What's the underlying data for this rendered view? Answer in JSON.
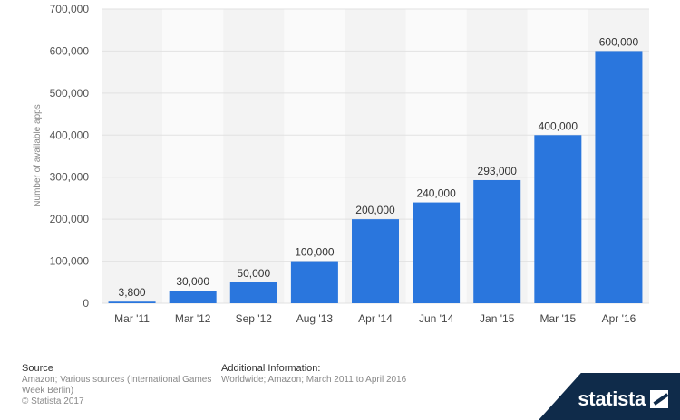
{
  "chart_data": {
    "type": "bar",
    "categories": [
      "Mar '11",
      "Mar '12",
      "Sep '12",
      "Aug '13",
      "Apr '14",
      "Jun '14",
      "Jan '15",
      "Mar '15",
      "Apr '16"
    ],
    "values": [
      3800,
      30000,
      50000,
      100000,
      200000,
      240000,
      293000,
      400000,
      600000
    ],
    "value_labels": [
      "3,800",
      "30,000",
      "50,000",
      "100,000",
      "200,000",
      "240,000",
      "293,000",
      "400,000",
      "600,000"
    ],
    "ylabel": "Number of available apps",
    "ylim": [
      0,
      700000
    ],
    "yticks": [
      0,
      100000,
      200000,
      300000,
      400000,
      500000,
      600000,
      700000
    ],
    "ytick_labels": [
      "0",
      "100,000",
      "200,000",
      "300,000",
      "400,000",
      "500,000",
      "600,000",
      "700,000"
    ],
    "bar_color": "#2a76dd",
    "grid": true
  },
  "footer": {
    "source_heading": "Source",
    "source_text": "Amazon; Various sources (International Games Week Berlin)",
    "copyright": "© Statista 2017",
    "additional_heading": "Additional Information:",
    "additional_text": "Worldwide; Amazon; March 2011 to April 2016"
  },
  "brand": {
    "name": "statista",
    "icon": "statista-logo-icon"
  }
}
